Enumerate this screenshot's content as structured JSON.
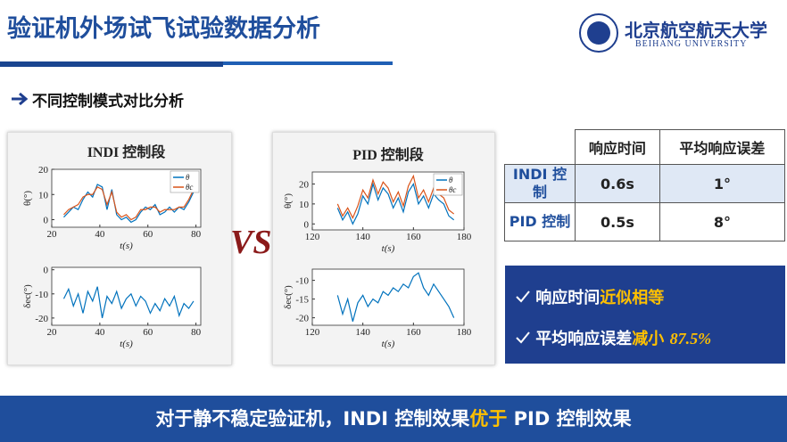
{
  "header": {
    "title": "验证机外场试飞试验数据分析",
    "logo_cn": "北京航空航天大学",
    "logo_en": "BEIHANG UNIVERSITY"
  },
  "section_title": "不同控制模式对比分析",
  "vs": "VS",
  "chart_data": [
    {
      "type": "line",
      "title": "INDI 控制段",
      "xlabel": "t(s)",
      "ylabel": "θ(°)",
      "legend": "upper right",
      "x": [
        25,
        27,
        29,
        31,
        33,
        35,
        37,
        39,
        41,
        43,
        45,
        47,
        49,
        51,
        53,
        55,
        57,
        59,
        61,
        63,
        65,
        67,
        69,
        71,
        73,
        75,
        77,
        79
      ],
      "series": [
        {
          "name": "θ",
          "color": "#0072bd",
          "values": [
            1,
            3,
            5,
            4,
            8,
            11,
            9,
            14,
            13,
            4,
            12,
            2,
            0,
            1,
            -1,
            0,
            3,
            5,
            4,
            6,
            2,
            3,
            5,
            3,
            5,
            4,
            7,
            11
          ]
        },
        {
          "name": "θc",
          "color": "#d95319",
          "values": [
            2,
            4,
            5,
            6,
            9,
            10,
            10,
            13,
            12,
            6,
            11,
            3,
            1,
            2,
            0,
            1,
            4,
            4,
            5,
            5,
            3,
            4,
            4,
            4,
            5,
            5,
            8,
            12
          ]
        }
      ],
      "xlim": [
        20,
        82
      ],
      "ylim": [
        -3,
        20
      ],
      "xticks": [
        20,
        40,
        60,
        80
      ],
      "yticks": [
        0,
        10,
        20
      ]
    },
    {
      "type": "line",
      "xlabel": "t(s)",
      "ylabel": "δec(°)",
      "x": [
        25,
        27,
        29,
        31,
        33,
        35,
        37,
        39,
        41,
        43,
        45,
        47,
        49,
        51,
        53,
        55,
        57,
        59,
        61,
        63,
        65,
        67,
        69,
        71,
        73,
        75,
        77,
        79
      ],
      "series": [
        {
          "name": "δec",
          "color": "#0072bd",
          "values": [
            -12,
            -8,
            -15,
            -10,
            -18,
            -9,
            -13,
            -7,
            -20,
            -11,
            -14,
            -9,
            -16,
            -12,
            -10,
            -15,
            -11,
            -13,
            -18,
            -14,
            -17,
            -12,
            -15,
            -11,
            -19,
            -14,
            -16,
            -13
          ]
        }
      ],
      "xlim": [
        20,
        82
      ],
      "ylim": [
        -23,
        1
      ],
      "xticks": [
        20,
        40,
        60,
        80
      ],
      "yticks": [
        -20,
        -10,
        0
      ]
    },
    {
      "type": "line",
      "title": "PID 控制段",
      "xlabel": "t(s)",
      "ylabel": "θ(°)",
      "legend": "upper right",
      "x": [
        130,
        132,
        134,
        136,
        138,
        140,
        142,
        144,
        146,
        148,
        150,
        152,
        154,
        156,
        158,
        160,
        162,
        164,
        166,
        168,
        170,
        172,
        174,
        176
      ],
      "series": [
        {
          "name": "θ",
          "color": "#0072bd",
          "values": [
            8,
            2,
            6,
            0,
            5,
            14,
            10,
            20,
            12,
            18,
            15,
            8,
            13,
            6,
            16,
            20,
            10,
            14,
            8,
            15,
            12,
            10,
            4,
            2
          ]
        },
        {
          "name": "θc",
          "color": "#d95319",
          "values": [
            10,
            4,
            8,
            3,
            9,
            17,
            13,
            22,
            15,
            21,
            18,
            11,
            16,
            9,
            19,
            24,
            13,
            17,
            11,
            18,
            15,
            13,
            7,
            5
          ]
        }
      ],
      "xlim": [
        120,
        180
      ],
      "ylim": [
        -3,
        26
      ],
      "xticks": [
        120,
        140,
        160,
        180
      ],
      "yticks": [
        0,
        10,
        20
      ]
    },
    {
      "type": "line",
      "xlabel": "t(s)",
      "ylabel": "δec(°)",
      "x": [
        130,
        132,
        134,
        136,
        138,
        140,
        142,
        144,
        146,
        148,
        150,
        152,
        154,
        156,
        158,
        160,
        162,
        164,
        166,
        168,
        170,
        172,
        174,
        176
      ],
      "series": [
        {
          "name": "δec",
          "color": "#0072bd",
          "values": [
            -14,
            -19,
            -15,
            -21,
            -16,
            -14,
            -17,
            -15,
            -16,
            -13,
            -14,
            -12,
            -13,
            -11,
            -12,
            -9,
            -8,
            -12,
            -14,
            -11,
            -13,
            -15,
            -17,
            -20
          ]
        }
      ],
      "xlim": [
        120,
        180
      ],
      "ylim": [
        -22,
        -7
      ],
      "xticks": [
        120,
        140,
        160,
        180
      ],
      "yticks": [
        -20,
        -15,
        -10
      ]
    }
  ],
  "table": {
    "header": [
      "响应时间",
      "平均响应误差"
    ],
    "rows": [
      [
        "INDI 控制",
        "0.6s",
        "1°"
      ],
      [
        "PID 控制",
        "0.5s",
        "8°"
      ]
    ]
  },
  "bullets": [
    {
      "text": "响应时间",
      "highlight": "近似相等"
    },
    {
      "text": "平均响应误差",
      "highlight": "减小",
      "emphasis": "87.5%"
    }
  ],
  "footer": {
    "text": "对于静不稳定验证机，INDI 控制效果",
    "highlight": "优于",
    "tail": " PID 控制效果"
  }
}
